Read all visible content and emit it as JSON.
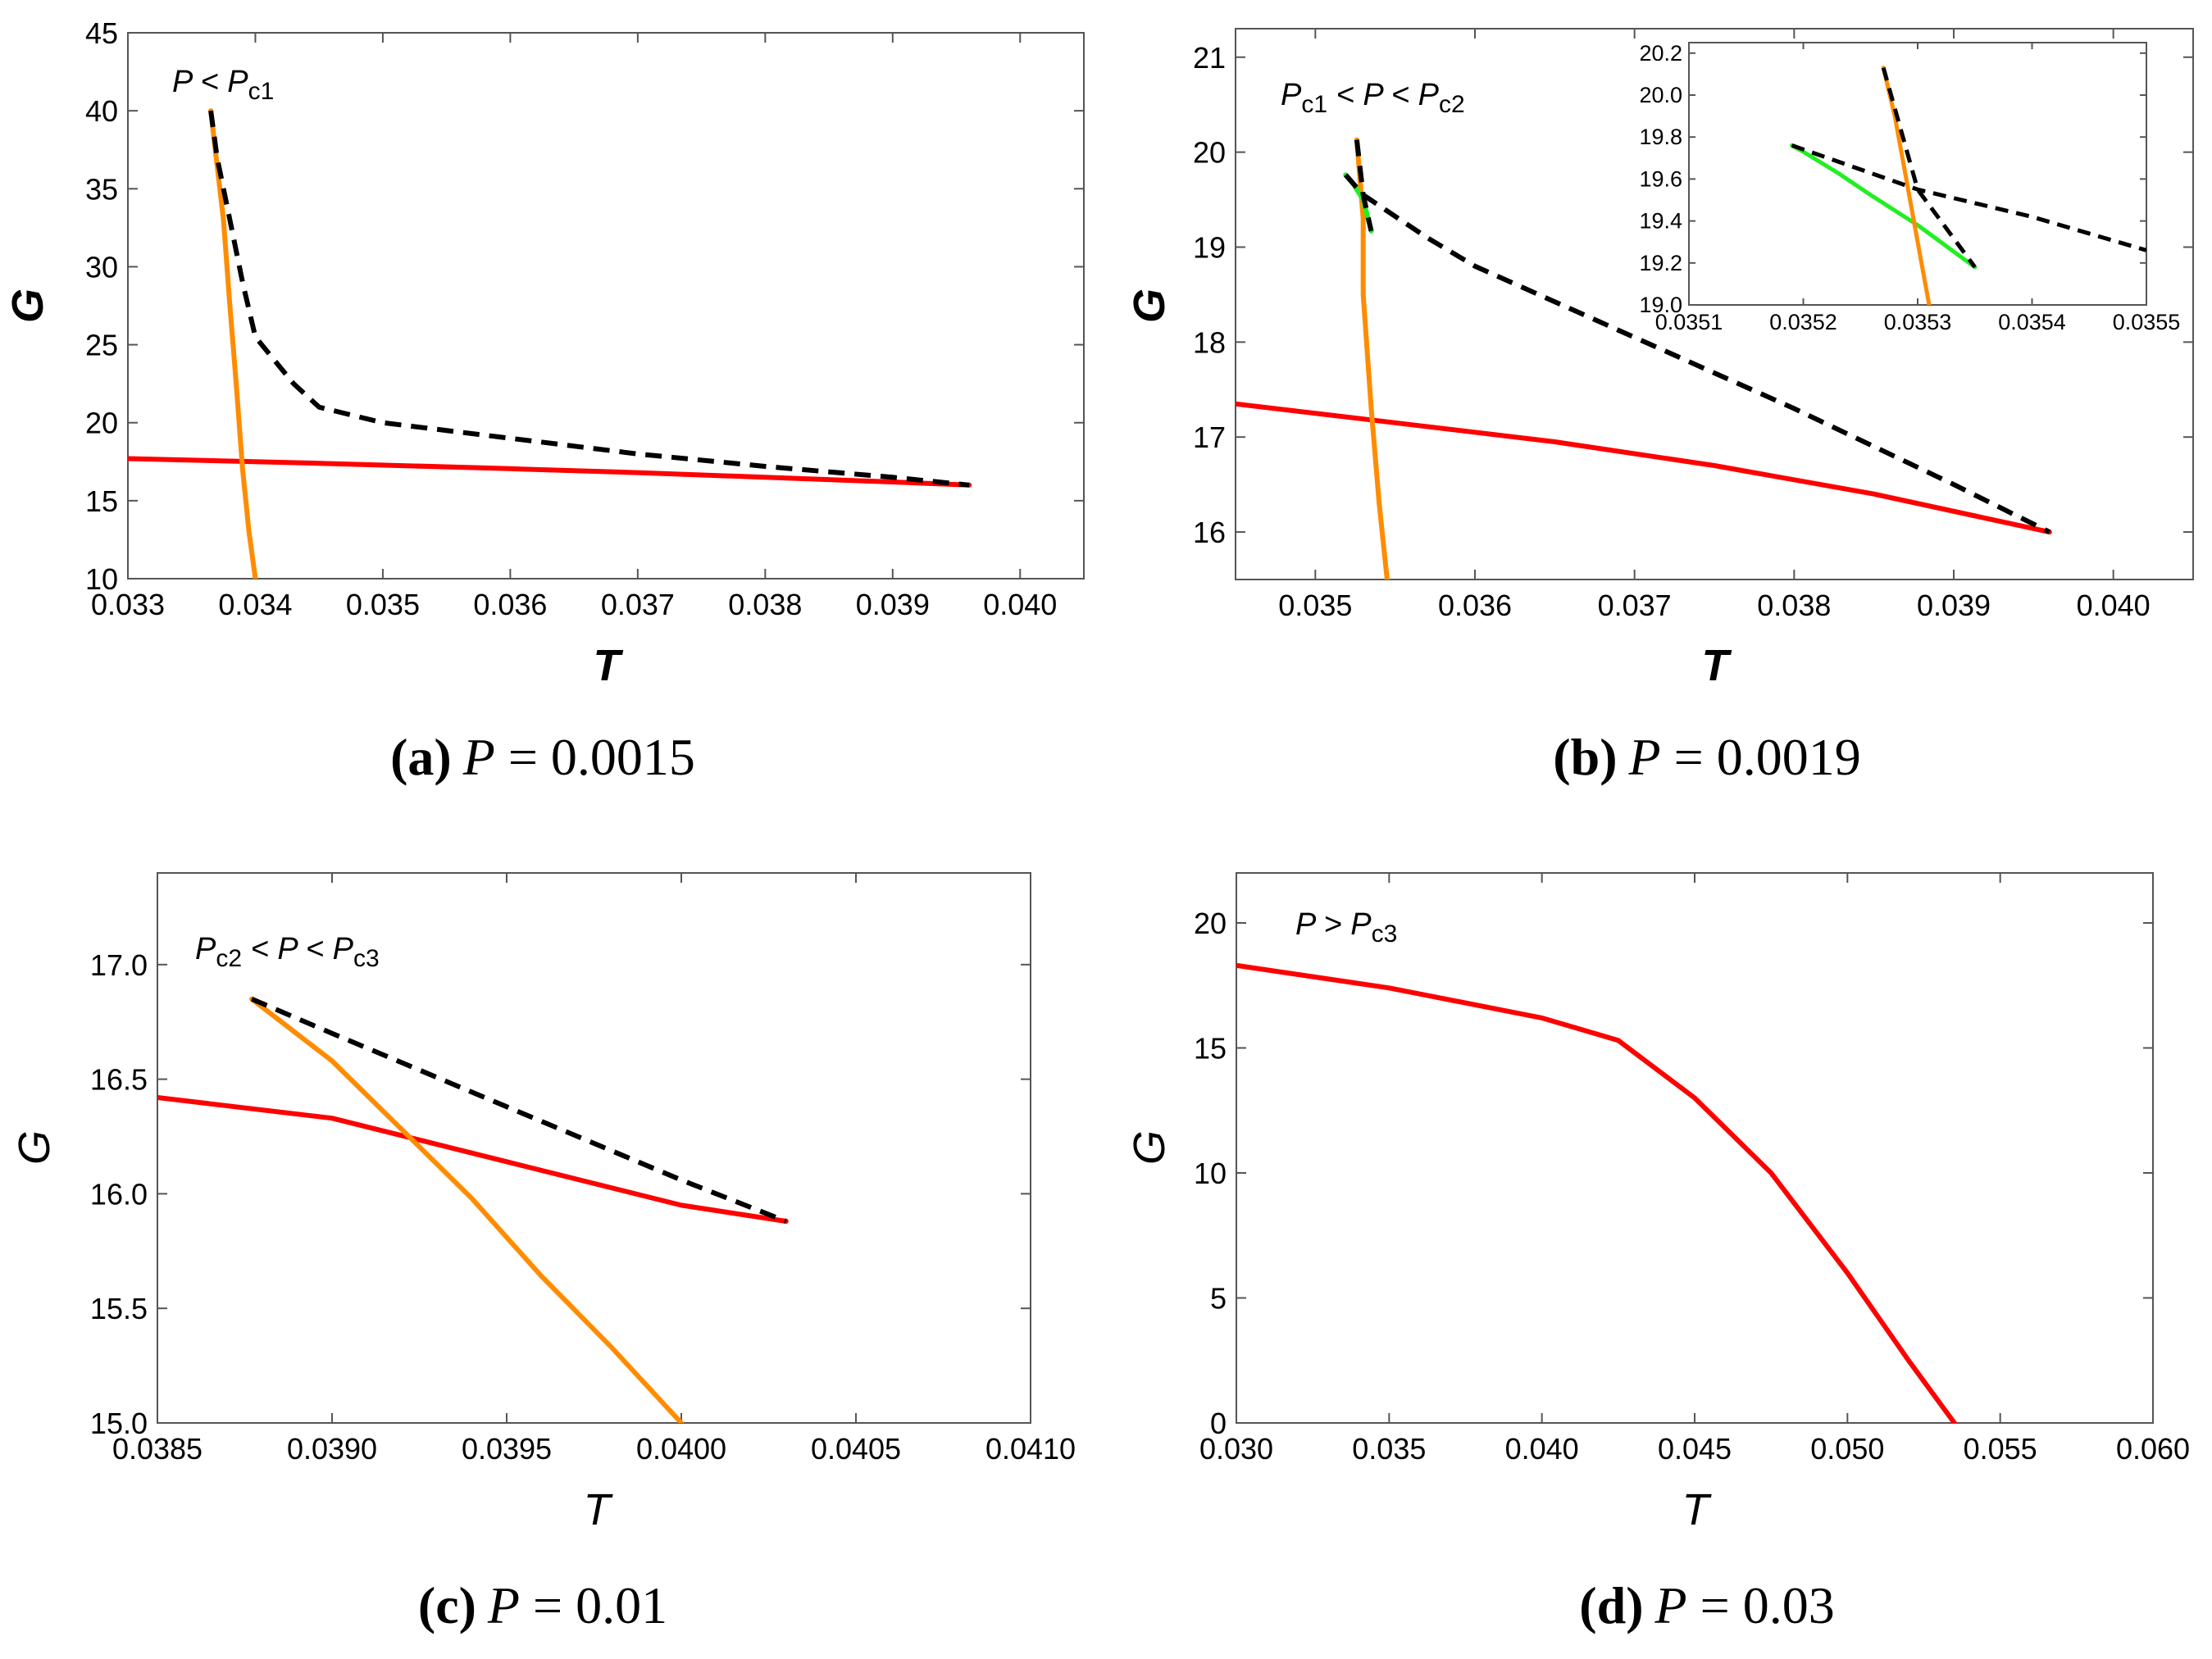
{
  "colors": {
    "red": "#ff0000",
    "orange": "#ff8c00",
    "black": "#000000",
    "green": "#22ee22",
    "frame": "#555555"
  },
  "chart_data": [
    {
      "type": "line",
      "caption": {
        "label": "(a)",
        "var": "P",
        "eq": " = 0.0015"
      },
      "annotation": {
        "base": "P  < P",
        "sub": "c1"
      },
      "xlabel": "T",
      "ylabel": "G",
      "xlim": [
        0.033,
        0.0405
      ],
      "ylim": [
        10,
        45
      ],
      "xticks": [
        0.033,
        0.034,
        0.035,
        0.036,
        0.037,
        0.038,
        0.039,
        0.04
      ],
      "xtick_labels": [
        "0.033",
        "0.034",
        "0.035",
        "0.036",
        "0.037",
        "0.038",
        "0.039",
        "0.040"
      ],
      "yticks": [
        10,
        15,
        20,
        25,
        30,
        35,
        40,
        45
      ],
      "ytick_labels": [
        "10",
        "15",
        "20",
        "25",
        "30",
        "35",
        "40",
        "45"
      ],
      "series": [
        {
          "color": "red",
          "dash": false,
          "points": [
            [
              0.033,
              17.7
            ],
            [
              0.0345,
              17.4
            ],
            [
              0.036,
              17.05
            ],
            [
              0.037,
              16.8
            ],
            [
              0.038,
              16.5
            ],
            [
              0.039,
              16.2
            ],
            [
              0.0396,
              16.0
            ]
          ]
        },
        {
          "color": "orange",
          "dash": false,
          "points": [
            [
              0.03365,
              40.0
            ],
            [
              0.0337,
              36.5
            ],
            [
              0.03375,
              33.0
            ],
            [
              0.0338,
              27.5
            ],
            [
              0.03385,
              22.5
            ],
            [
              0.0339,
              17.0
            ],
            [
              0.03395,
              13.0
            ],
            [
              0.034,
              10.0
            ]
          ]
        },
        {
          "color": "black",
          "dash": true,
          "points": [
            [
              0.03365,
              40.0
            ],
            [
              0.0337,
              37.0
            ],
            [
              0.0338,
              33.0
            ],
            [
              0.0339,
              29.0
            ],
            [
              0.034,
              25.5
            ],
            [
              0.0343,
              22.5
            ],
            [
              0.0345,
              21.0
            ],
            [
              0.035,
              20.0
            ],
            [
              0.036,
              19.0
            ],
            [
              0.037,
              18.0
            ],
            [
              0.038,
              17.2
            ],
            [
              0.039,
              16.5
            ],
            [
              0.0396,
              16.0
            ]
          ]
        }
      ]
    },
    {
      "type": "line",
      "caption": {
        "label": "(b)",
        "var": "P",
        "eq": " = 0.0019"
      },
      "annotation": {
        "base": "P",
        "sub": "c1",
        "tail": "  < P < P",
        "sub2": "c2"
      },
      "xlabel": "T",
      "ylabel": "G",
      "xlim": [
        0.0345,
        0.0405
      ],
      "ylim": [
        15.5,
        21.3
      ],
      "xticks": [
        0.035,
        0.036,
        0.037,
        0.038,
        0.039,
        0.04
      ],
      "xtick_labels": [
        "0.035",
        "0.036",
        "0.037",
        "0.038",
        "0.039",
        "0.040"
      ],
      "yticks": [
        16,
        17,
        18,
        19,
        20,
        21
      ],
      "ytick_labels": [
        "16",
        "17",
        "18",
        "19",
        "20",
        "21"
      ],
      "series": [
        {
          "color": "red",
          "dash": false,
          "points": [
            [
              0.0345,
              17.35
            ],
            [
              0.0355,
              17.15
            ],
            [
              0.0365,
              16.95
            ],
            [
              0.0375,
              16.7
            ],
            [
              0.0385,
              16.4
            ],
            [
              0.0396,
              16.0
            ]
          ]
        },
        {
          "color": "orange",
          "dash": false,
          "points": [
            [
              0.03526,
              20.13
            ],
            [
              0.0353,
              19.3
            ],
            [
              0.0353,
              18.5
            ],
            [
              0.03535,
              17.3
            ],
            [
              0.0354,
              16.3
            ],
            [
              0.03545,
              15.5
            ]
          ]
        },
        {
          "color": "green",
          "dash": false,
          "points": [
            [
              0.03519,
              19.76
            ],
            [
              0.03524,
              19.66
            ],
            [
              0.0353,
              19.5
            ],
            [
              0.03535,
              19.17
            ]
          ]
        },
        {
          "color": "black",
          "dash": true,
          "points": [
            [
              0.03526,
              20.13
            ],
            [
              0.0353,
              19.55
            ],
            [
              0.03535,
              19.17
            ]
          ]
        },
        {
          "color": "black",
          "dash": true,
          "points": [
            [
              0.03519,
              19.76
            ],
            [
              0.0353,
              19.55
            ],
            [
              0.0357,
              19.1
            ],
            [
              0.036,
              18.8
            ],
            [
              0.037,
              18.05
            ],
            [
              0.038,
              17.3
            ],
            [
              0.039,
              16.5
            ],
            [
              0.0396,
              16.0
            ]
          ]
        }
      ],
      "inset": {
        "xlim": [
          0.0351,
          0.0355
        ],
        "ylim": [
          19.0,
          20.25
        ],
        "xticks": [
          0.0351,
          0.0352,
          0.0353,
          0.0354,
          0.0355
        ],
        "xtick_labels": [
          "0.0351",
          "0.0352",
          "0.0353",
          "0.0354",
          "0.0355"
        ],
        "yticks": [
          19.0,
          19.2,
          19.4,
          19.6,
          19.8,
          20.0,
          20.2
        ],
        "ytick_labels": [
          "19.0",
          "19.2",
          "19.4",
          "19.6",
          "19.8",
          "20.0",
          "20.2"
        ],
        "series": [
          {
            "color": "green",
            "dash": false,
            "points": [
              [
                0.03519,
                19.76
              ],
              [
                0.0352,
                19.73
              ],
              [
                0.03523,
                19.63
              ],
              [
                0.03526,
                19.52
              ],
              [
                0.0353,
                19.38
              ],
              [
                0.03535,
                19.18
              ]
            ]
          },
          {
            "color": "orange",
            "dash": false,
            "points": [
              [
                0.03527,
                20.13
              ],
              [
                0.03528,
                19.9
              ],
              [
                0.03529,
                19.6
              ],
              [
                0.0353,
                19.3
              ],
              [
                0.03531,
                19.0
              ]
            ]
          },
          {
            "color": "black",
            "dash": true,
            "points": [
              [
                0.03527,
                20.13
              ],
              [
                0.0353,
                19.55
              ],
              [
                0.03535,
                19.18
              ]
            ]
          },
          {
            "color": "black",
            "dash": true,
            "points": [
              [
                0.03519,
                19.76
              ],
              [
                0.0353,
                19.55
              ],
              [
                0.0354,
                19.42
              ],
              [
                0.0355,
                19.26
              ]
            ]
          }
        ]
      }
    },
    {
      "type": "line",
      "caption": {
        "label": "(c)",
        "var": "P",
        "eq": " = 0.01"
      },
      "annotation": {
        "base": "P",
        "sub": "c2",
        "tail": "  < P < P",
        "sub2": "c3"
      },
      "xlabel": "T",
      "ylabel": "G",
      "xlim": [
        0.0385,
        0.041
      ],
      "ylim": [
        15.0,
        17.4
      ],
      "xticks": [
        0.0385,
        0.039,
        0.0395,
        0.04,
        0.0405,
        0.041
      ],
      "xtick_labels": [
        "0.0385",
        "0.0390",
        "0.0395",
        "0.0400",
        "0.0405",
        "0.0410"
      ],
      "yticks": [
        15.0,
        15.5,
        16.0,
        16.5,
        17.0
      ],
      "ytick_labels": [
        "15.0",
        "15.5",
        "16.0",
        "16.5",
        "17.0"
      ],
      "series": [
        {
          "color": "red",
          "dash": false,
          "points": [
            [
              0.0385,
              16.42
            ],
            [
              0.039,
              16.33
            ],
            [
              0.0395,
              16.14
            ],
            [
              0.04,
              15.95
            ],
            [
              0.0403,
              15.88
            ]
          ]
        },
        {
          "color": "orange",
          "dash": false,
          "points": [
            [
              0.03877,
              16.85
            ],
            [
              0.039,
              16.58
            ],
            [
              0.0392,
              16.28
            ],
            [
              0.0394,
              15.98
            ],
            [
              0.0396,
              15.64
            ],
            [
              0.0398,
              15.33
            ],
            [
              0.04,
              15.0
            ]
          ]
        },
        {
          "color": "black",
          "dash": true,
          "points": [
            [
              0.03877,
              16.85
            ],
            [
              0.039,
              16.7
            ],
            [
              0.0395,
              16.38
            ],
            [
              0.04,
              16.06
            ],
            [
              0.0403,
              15.88
            ]
          ]
        }
      ]
    },
    {
      "type": "line",
      "caption": {
        "label": "(d)",
        "var": "P",
        "eq": " = 0.03"
      },
      "annotation": {
        "base": "P  > P",
        "sub": "c3"
      },
      "xlabel": "T",
      "ylabel": "G",
      "xlim": [
        0.03,
        0.06
      ],
      "ylim": [
        0,
        22
      ],
      "xticks": [
        0.03,
        0.035,
        0.04,
        0.045,
        0.05,
        0.055,
        0.06
      ],
      "xtick_labels": [
        "0.030",
        "0.035",
        "0.040",
        "0.045",
        "0.050",
        "0.055",
        "0.060"
      ],
      "yticks": [
        0,
        5,
        10,
        15,
        20
      ],
      "ytick_labels": [
        "0",
        "5",
        "10",
        "15",
        "20"
      ],
      "series": [
        {
          "color": "red",
          "dash": false,
          "points": [
            [
              0.03,
              18.3
            ],
            [
              0.035,
              17.4
            ],
            [
              0.04,
              16.2
            ],
            [
              0.0425,
              15.3
            ],
            [
              0.045,
              13.0
            ],
            [
              0.0475,
              10.0
            ],
            [
              0.05,
              6.0
            ],
            [
              0.052,
              2.5
            ],
            [
              0.0535,
              0
            ]
          ]
        }
      ]
    }
  ]
}
